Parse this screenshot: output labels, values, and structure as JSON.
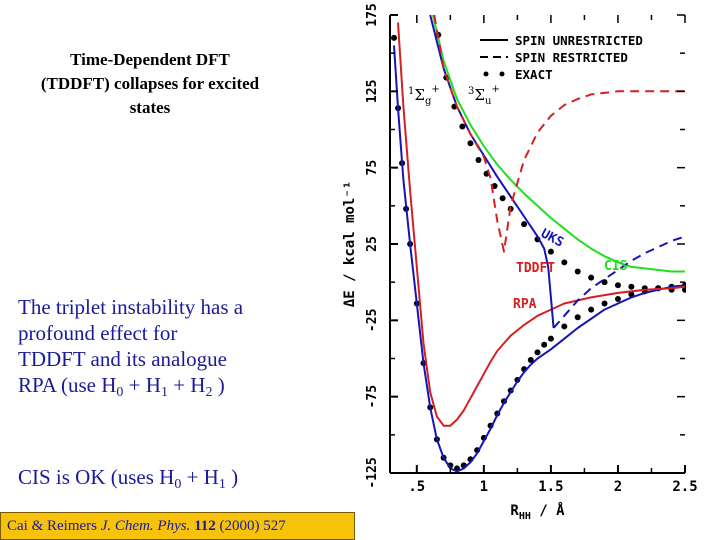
{
  "slide": {
    "title_lines": [
      "Time-Dependent DFT",
      "(TDDFT) collapses for excited",
      "states"
    ],
    "para1": {
      "lines": [
        "The triplet instability has a",
        "profound effect for",
        "TDDFT and its analogue"
      ],
      "last_prefix": "RPA (use H",
      "sub0": "0",
      "plus1": " + H",
      "sub1": "1",
      "plus2": " + H",
      "sub2": "2",
      "suffix": " )"
    },
    "para2": {
      "prefix": "CIS is OK (uses H",
      "sub0": "0",
      "plus1": " + H",
      "sub1": "1",
      "suffix": " )"
    },
    "citation": {
      "authors": "Cai & Reimers ",
      "journal": "J. Chem. Phys.",
      "volume": "112",
      "year_pages": " (2000) 527"
    }
  },
  "chart_data": {
    "type": "line",
    "xlabel": "R",
    "xlabel_sub": "HH",
    "xunit": " / Å",
    "ylabel": "ΔE / kcal mol⁻¹",
    "xlim": [
      0.3,
      2.5
    ],
    "ylim": [
      -125,
      175
    ],
    "x_ticks": [
      ".5",
      "1",
      "1.5",
      "2",
      "2.5"
    ],
    "y_ticks": [
      "-125",
      "-75",
      "-25",
      "25",
      "75",
      "125",
      "175"
    ],
    "legend": [
      {
        "label": "SPIN UNRESTRICTED",
        "style": "solid"
      },
      {
        "label": "SPIN RESTRICTED",
        "style": "dashed"
      },
      {
        "label": "EXACT",
        "style": "dots"
      }
    ],
    "state_labels": [
      {
        "sup": "1",
        "main": "Σ",
        "sub": "g",
        "supr": "+"
      },
      {
        "sup": "3",
        "main": "Σ",
        "sub": "u",
        "supr": "+"
      }
    ],
    "annotations": [
      "UKS",
      "TDDFT",
      "CIS",
      "RPA"
    ],
    "colors": {
      "cis": "#22dd22",
      "tddft": "#1515b5",
      "rpa": "#d42020",
      "exact": "#000000",
      "ground": "#1515b5"
    },
    "series": [
      {
        "name": "EXACT",
        "style": "dots",
        "x": [
          0.33,
          0.36,
          0.39,
          0.42,
          0.45,
          0.5,
          0.55,
          0.6,
          0.65,
          0.7,
          0.75,
          0.8,
          0.85,
          0.9,
          0.95,
          1.0,
          1.05,
          1.1,
          1.15,
          1.2,
          1.25,
          1.3,
          1.35,
          1.4,
          1.45,
          1.5,
          1.6,
          1.7,
          1.8,
          1.9,
          2.0,
          2.1,
          2.2,
          2.3,
          2.4,
          2.5
        ],
        "y": [
          160,
          114,
          78,
          48,
          25,
          -14,
          -53,
          -82,
          -103,
          -115,
          -120,
          -122,
          -120,
          -116,
          -110,
          -102,
          -94,
          -86,
          -78,
          -71,
          -64,
          -57,
          -51,
          -46,
          -41,
          -37,
          -29,
          -23,
          -18,
          -14,
          -11,
          -8,
          -6,
          -4,
          -3,
          -2
        ]
      },
      {
        "name": "EXACT triplet",
        "style": "dots",
        "x": [
          0.66,
          0.72,
          0.78,
          0.84,
          0.9,
          0.96,
          1.02,
          1.08,
          1.14,
          1.2,
          1.3,
          1.4,
          1.5,
          1.6,
          1.7,
          1.8,
          1.9,
          2.0,
          2.1,
          2.2,
          2.3,
          2.4,
          2.5
        ],
        "y": [
          162,
          134,
          115,
          102,
          91,
          80,
          71,
          63,
          55,
          48,
          38,
          28,
          20,
          13,
          7,
          3,
          0,
          -2,
          -3,
          -4,
          -4,
          -5,
          -5
        ]
      },
      {
        "name": "Ground UKS",
        "style": "solid",
        "x": [
          0.33,
          0.36,
          0.4,
          0.45,
          0.5,
          0.55,
          0.6,
          0.65,
          0.7,
          0.75,
          0.8,
          0.85,
          0.9,
          0.95,
          1.0,
          1.05,
          1.1,
          1.15,
          1.2,
          1.25,
          1.3,
          1.35,
          1.4,
          1.45,
          1.5,
          1.6,
          1.7,
          1.8,
          1.9,
          2.0,
          2.1,
          2.2,
          2.3,
          2.4,
          2.5
        ],
        "y": [
          155,
          114,
          67,
          25,
          -14,
          -53,
          -82,
          -103,
          -115,
          -122,
          -124,
          -122,
          -118,
          -112,
          -104,
          -96,
          -87,
          -79,
          -72,
          -65,
          -59,
          -54,
          -50,
          -47,
          -44,
          -37,
          -30,
          -24,
          -18,
          -14,
          -10,
          -7,
          -5,
          -3,
          -2
        ]
      },
      {
        "name": "Ground RPA",
        "style": "solid",
        "x": [
          0.36,
          0.4,
          0.45,
          0.5,
          0.55,
          0.6,
          0.65,
          0.7,
          0.75,
          0.8,
          0.85,
          0.9,
          0.95,
          1.0,
          1.05,
          1.1,
          1.2,
          1.3,
          1.4,
          1.5,
          1.6,
          1.8,
          2.0,
          2.2,
          2.4,
          2.5
        ],
        "y": [
          170,
          115,
          60,
          10,
          -40,
          -72,
          -88,
          -94,
          -94,
          -90,
          -84,
          -76,
          -68,
          -60,
          -52,
          -45,
          -35,
          -28,
          -22,
          -18,
          -14,
          -10,
          -7,
          -5,
          -4,
          -3
        ]
      },
      {
        "name": "CIS",
        "style": "solid",
        "x": [
          0.62,
          0.7,
          0.8,
          0.9,
          1.0,
          1.1,
          1.2,
          1.3,
          1.4,
          1.5,
          1.6,
          1.7,
          1.8,
          1.9,
          2.0,
          2.1,
          2.2,
          2.3,
          2.4,
          2.5
        ],
        "y": [
          175,
          145,
          120,
          103,
          89,
          77,
          67,
          58,
          50,
          42,
          35,
          28,
          22,
          17,
          13,
          10,
          9,
          8,
          7,
          7
        ]
      },
      {
        "name": "TDDFT UKS",
        "style": "solid",
        "x": [
          0.6,
          0.7,
          0.8,
          0.9,
          1.0,
          1.1,
          1.2,
          1.3,
          1.4,
          1.45,
          1.48,
          1.5,
          1.52
        ],
        "y": [
          175,
          140,
          115,
          97,
          83,
          69,
          56,
          43,
          30,
          22,
          10,
          -10,
          -30
        ]
      },
      {
        "name": "TDDFT restricted",
        "style": "dashed",
        "x": [
          1.52,
          1.6,
          1.7,
          1.8,
          1.9,
          2.0,
          2.1,
          2.2,
          2.3,
          2.4,
          2.5
        ],
        "y": [
          -30,
          -22,
          -12,
          -4,
          2,
          8,
          14,
          19,
          23,
          27,
          30
        ]
      },
      {
        "name": "RPA restricted",
        "style": "dashed",
        "x": [
          0.63,
          0.7,
          0.8,
          0.9,
          1.0,
          1.05,
          1.1,
          1.15,
          1.2,
          1.3,
          1.4,
          1.5,
          1.6,
          1.7,
          1.8,
          1.9,
          2.0,
          2.2,
          2.4,
          2.5
        ],
        "y": [
          175,
          140,
          115,
          97,
          82,
          68,
          40,
          20,
          50,
          80,
          98,
          109,
          116,
          120,
          123,
          124,
          125,
          125,
          125,
          125
        ]
      }
    ]
  }
}
